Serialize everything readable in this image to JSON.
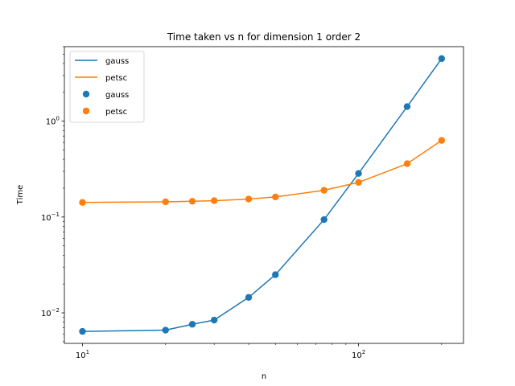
{
  "chart_data": {
    "type": "line",
    "title": "Time taken vs n for dimension 1 order 2",
    "xlabel": "n",
    "ylabel": "Time",
    "xscale": "log",
    "yscale": "log",
    "xlim": [
      8.6,
      240
    ],
    "ylim": [
      0.0048,
      6.0
    ],
    "x_ticks": [
      {
        "value": 10,
        "base": "10",
        "exp": "1"
      },
      {
        "value": 100,
        "base": "10",
        "exp": "2"
      }
    ],
    "y_ticks": [
      {
        "value": 0.01,
        "base": "10",
        "exp": "−2"
      },
      {
        "value": 0.1,
        "base": "10",
        "exp": "−1"
      },
      {
        "value": 1,
        "base": "10",
        "exp": "0"
      }
    ],
    "grid": false,
    "legend_position": "top-left",
    "x": [
      10,
      20,
      25,
      30,
      40,
      50,
      75,
      100,
      150,
      200
    ],
    "series": [
      {
        "name": "gauss",
        "color": "#1f77b4",
        "values": [
          0.0064,
          0.0066,
          0.0076,
          0.0084,
          0.0145,
          0.025,
          0.094,
          0.285,
          1.42,
          4.5
        ]
      },
      {
        "name": "petsc",
        "color": "#ff7f0e",
        "values": [
          0.142,
          0.144,
          0.146,
          0.148,
          0.154,
          0.162,
          0.19,
          0.23,
          0.36,
          0.63
        ]
      }
    ],
    "legend": [
      {
        "label": "gauss",
        "kind": "line",
        "color": "#1f77b4"
      },
      {
        "label": "petsc",
        "kind": "line",
        "color": "#ff7f0e"
      },
      {
        "label": "gauss",
        "kind": "marker",
        "color": "#1f77b4"
      },
      {
        "label": "petsc",
        "kind": "marker",
        "color": "#ff7f0e"
      }
    ]
  }
}
